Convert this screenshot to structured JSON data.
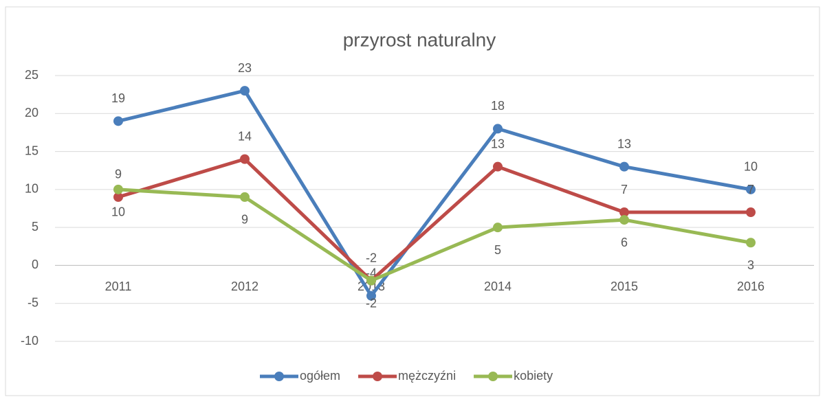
{
  "chart_data": {
    "type": "line",
    "title": "przyrost naturalny",
    "categories": [
      "2011",
      "2012",
      "2013",
      "2014",
      "2015",
      "2016"
    ],
    "series": [
      {
        "name": "ogółem",
        "color": "#4a7ebb",
        "values": [
          19,
          23,
          -4,
          18,
          13,
          10
        ],
        "label_position": "above"
      },
      {
        "name": "mężczyźni",
        "color": "#be4b48",
        "values": [
          9,
          14,
          -2,
          13,
          7,
          7
        ],
        "label_position": "above"
      },
      {
        "name": "kobiety",
        "color": "#98b954",
        "values": [
          10,
          9,
          -2,
          5,
          6,
          3
        ],
        "label_position": "below"
      }
    ],
    "ylim": [
      -10,
      25
    ],
    "yticks": [
      -10,
      -5,
      0,
      5,
      10,
      15,
      20,
      25
    ],
    "grid": true,
    "legend": "bottom"
  }
}
